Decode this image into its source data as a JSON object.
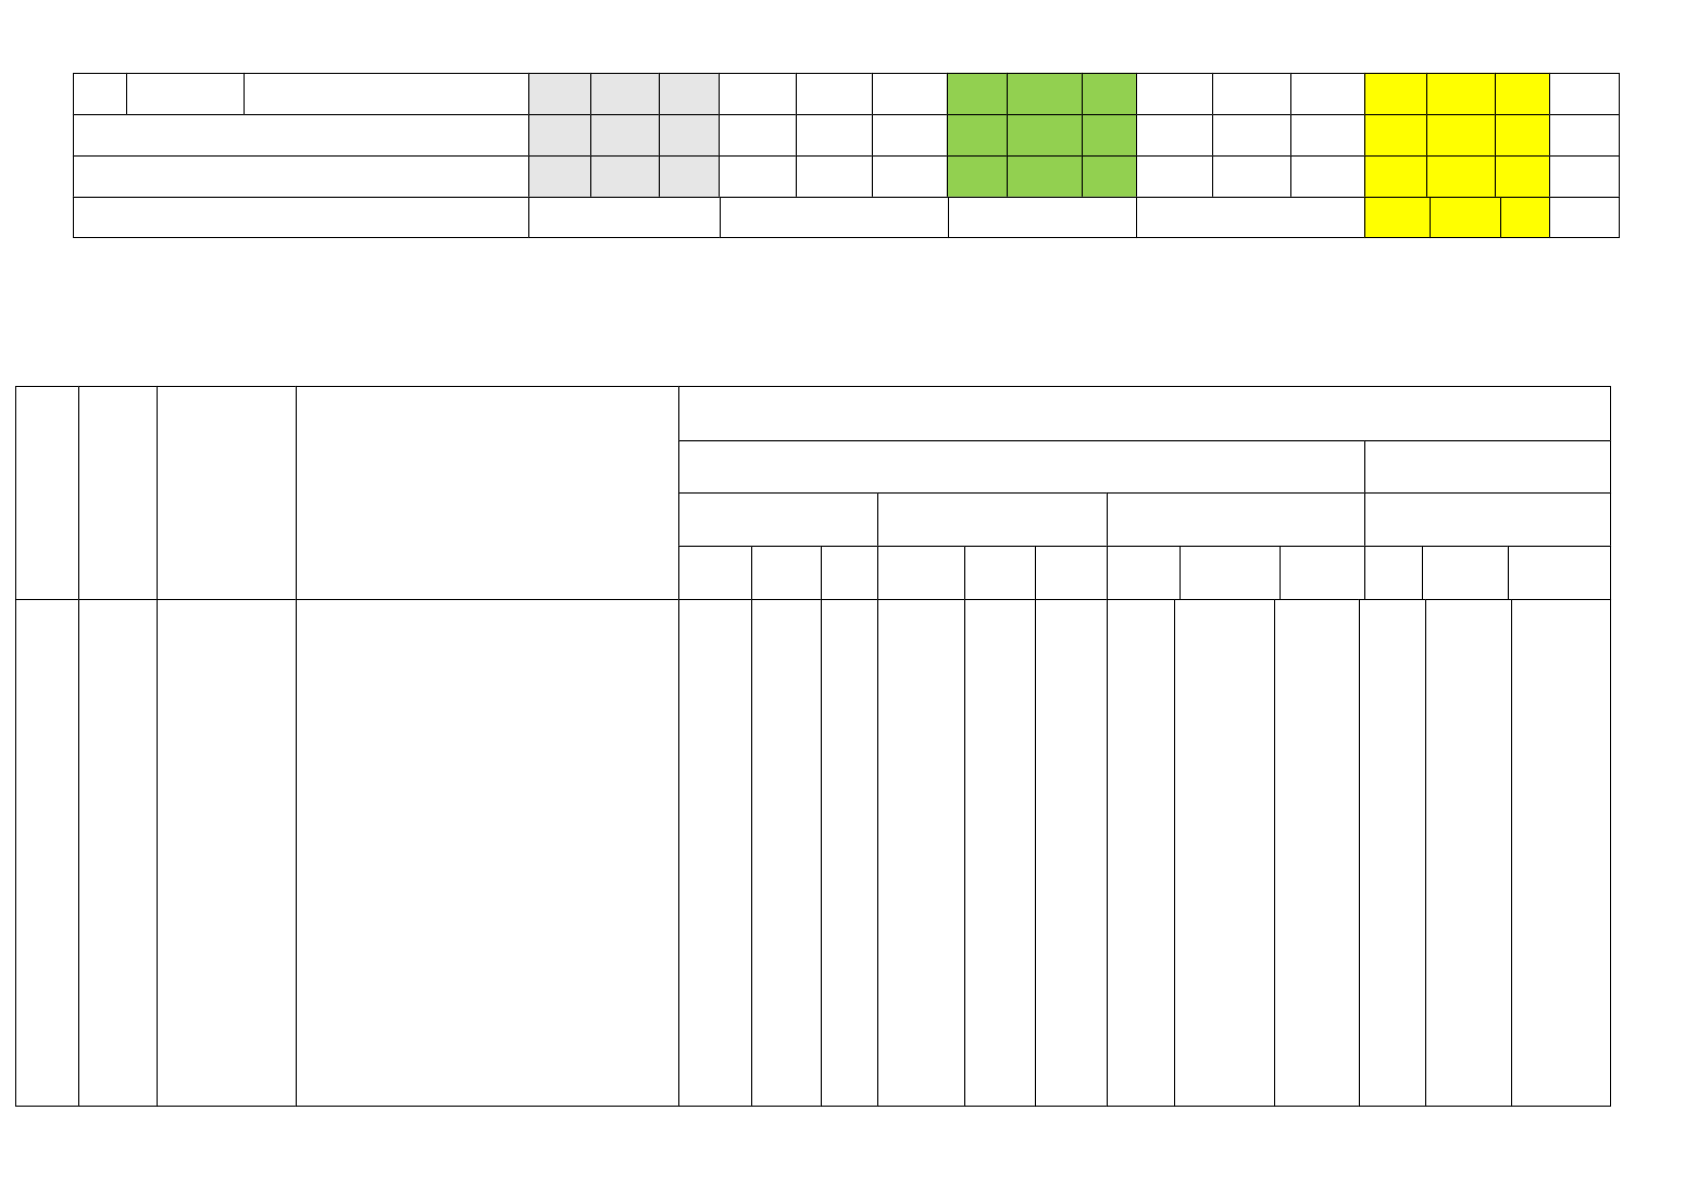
{
  "document": {
    "summary_table": {
      "rows": 4,
      "fill_colors": {
        "gray": "#e6e6e6",
        "green": "#92d050",
        "yellow": "#ffff00",
        "blank": "#ffffff"
      }
    },
    "main_table": {
      "header_rows": 4,
      "body_rows": 1
    },
    "text": []
  }
}
